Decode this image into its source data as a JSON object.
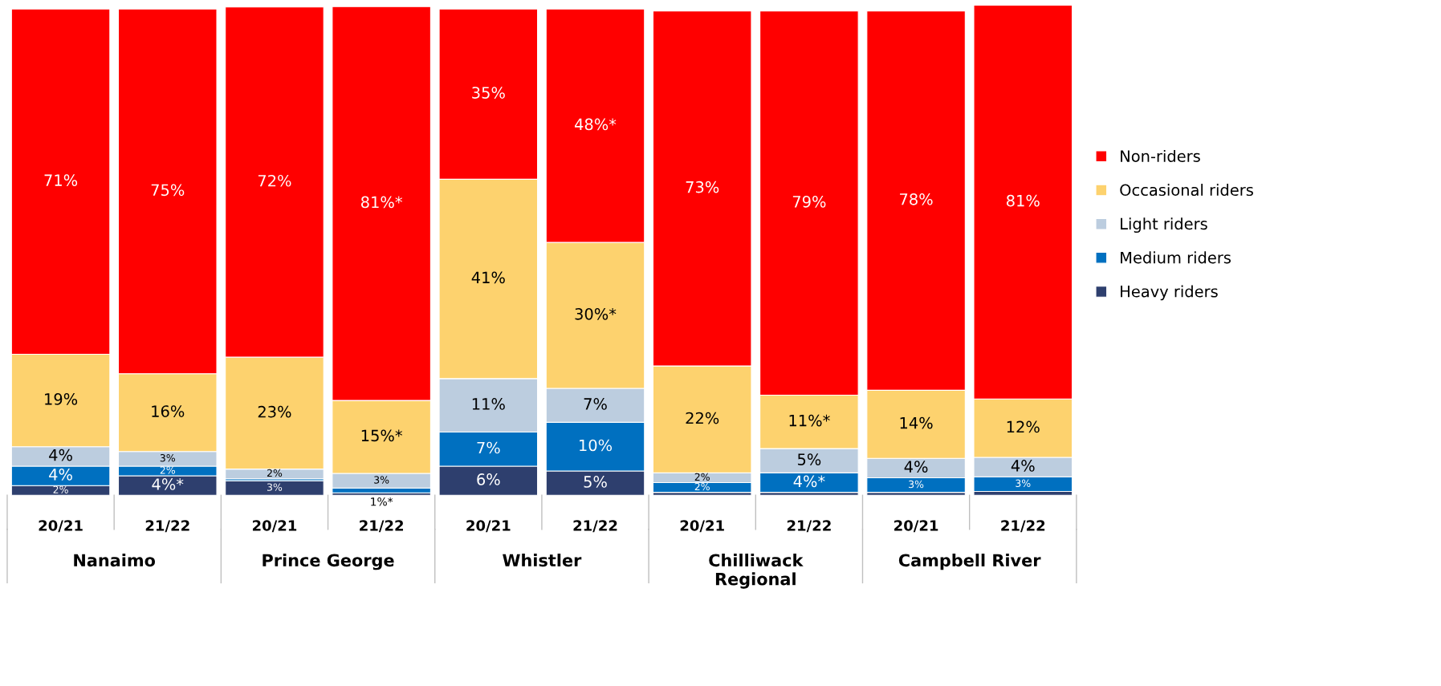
{
  "chart_data": {
    "type": "bar",
    "stacked": true,
    "categories": [
      "20/21",
      "21/22",
      "20/21",
      "21/22",
      "20/21",
      "21/22",
      "20/21",
      "21/22",
      "20/21",
      "21/22"
    ],
    "annotations": [
      "Nanaimo",
      "Prince George",
      "Whistler",
      "Chilliwack Regional",
      "Campbell River"
    ],
    "ylim": [
      0,
      101
    ],
    "tick_labels": "x",
    "legend": "right",
    "grid": false,
    "series": [
      {
        "name": "Heavy riders",
        "color": "#2e3f6e",
        "values": [
          2,
          4,
          3,
          0.5,
          6,
          5,
          0.6,
          0.6,
          0.6,
          0.8
        ],
        "value_labels": [
          "2%",
          "4%*",
          "3%",
          null,
          "6%",
          "5%",
          null,
          null,
          null,
          null
        ]
      },
      {
        "name": "Medium riders",
        "color": "#0070c0",
        "values": [
          4,
          2,
          0.4,
          1,
          7,
          10,
          2,
          4,
          3,
          3
        ],
        "value_labels": [
          "4%",
          "2%",
          null,
          "1%*",
          "7%",
          "10%",
          "2%",
          "4%*",
          "3%",
          "3%"
        ]
      },
      {
        "name": "Light riders",
        "color": "#bccddf",
        "values": [
          4,
          3,
          2,
          3,
          11,
          7,
          2,
          5,
          4,
          4
        ],
        "value_labels": [
          "4%",
          "3%",
          "2%",
          "3%",
          "11%",
          "7%",
          "2%",
          "5%",
          "4%",
          "4%"
        ]
      },
      {
        "name": "Occasional riders",
        "color": "#fdd26e",
        "values": [
          19,
          16,
          23,
          15,
          41,
          30,
          22,
          11,
          14,
          12
        ],
        "value_labels": [
          "19%",
          "16%",
          "23%",
          "15%*",
          "41%",
          "30%*",
          "22%",
          "11%*",
          "14%",
          "12%"
        ]
      },
      {
        "name": "Non-riders",
        "color": "#ff0000",
        "values": [
          71,
          75,
          72,
          81,
          35,
          48,
          73,
          79,
          78,
          81
        ],
        "value_labels": [
          "71%",
          "75%",
          "72%",
          "81%*",
          "35%",
          "48%*",
          "73%",
          "79%",
          "78%",
          "81%"
        ]
      }
    ]
  }
}
